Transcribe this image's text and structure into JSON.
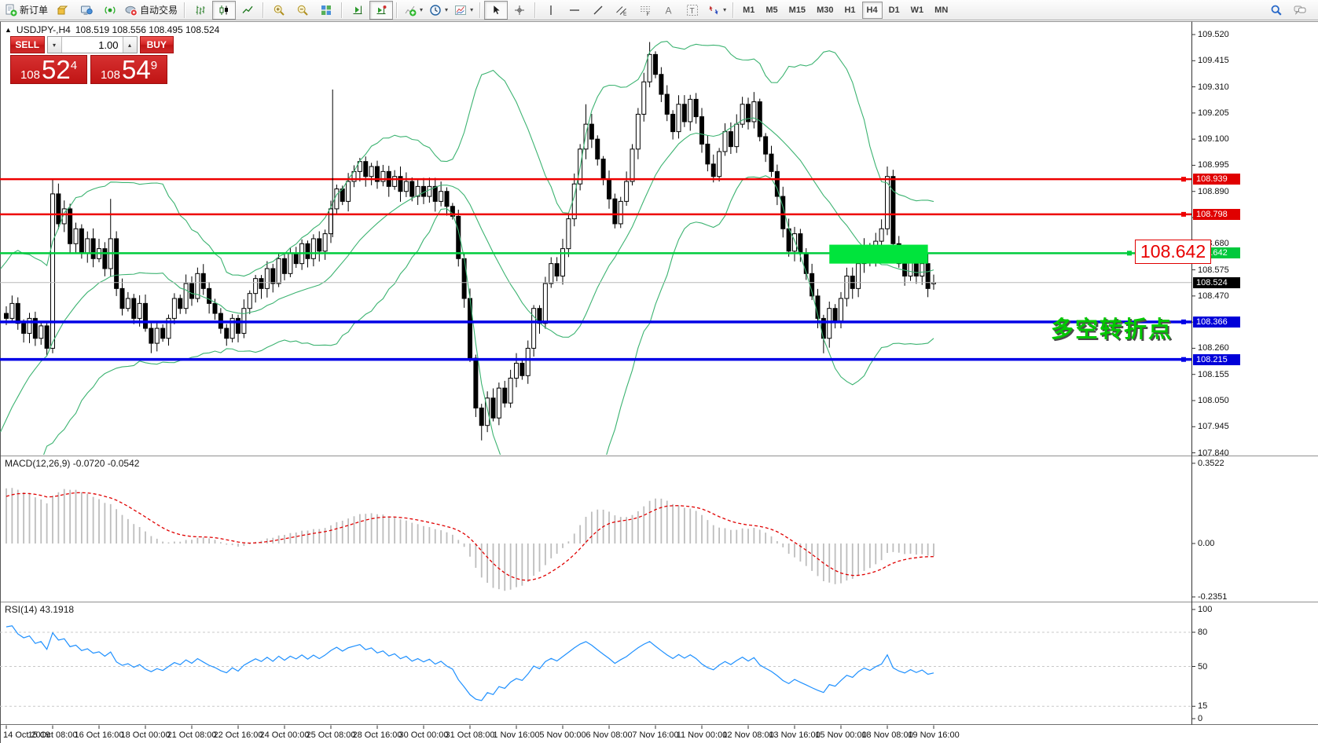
{
  "toolbar": {
    "new_order_label": "新订单",
    "autotrading_label": "自动交易",
    "timeframes": [
      "M1",
      "M5",
      "M15",
      "M30",
      "H1",
      "H4",
      "D1",
      "W1",
      "MN"
    ],
    "active_timeframe": "H4"
  },
  "chart_header": {
    "collapse_glyph": "▲",
    "title": "USDJPY-,H4",
    "ohlc": "108.519 108.556 108.495 108.524"
  },
  "trade_panel": {
    "sell_label": "SELL",
    "buy_label": "BUY",
    "volume": "1.00",
    "sell_price": {
      "prefix": "108",
      "big": "52",
      "sup": "4"
    },
    "buy_price": {
      "prefix": "108",
      "big": "54",
      "sup": "9"
    }
  },
  "price_axis": {
    "ticks": [
      "109.520",
      "109.415",
      "109.310",
      "109.205",
      "109.100",
      "108.995",
      "108.890",
      "108.785",
      "108.680",
      "108.575",
      "108.470",
      "108.365",
      "108.260",
      "108.155",
      "108.050",
      "107.945",
      "107.840"
    ],
    "tags": [
      {
        "text": "108.939",
        "bg": "#e00000"
      },
      {
        "text": "108.798",
        "bg": "#e00000"
      },
      {
        "text": "108.642",
        "bg": "#00c83c"
      },
      {
        "text": "108.524",
        "bg": "#000000"
      },
      {
        "text": "108.366",
        "bg": "#0000d8"
      },
      {
        "text": "108.215",
        "bg": "#0000d8"
      }
    ]
  },
  "annotations": {
    "price_callout": "108.642",
    "note_cn": "多空转折点"
  },
  "macd_panel": {
    "label": "MACD(12,26,9) -0.0720 -0.0542",
    "ticks": [
      {
        "text": "0.3522",
        "value": 0.3522
      },
      {
        "text": "0.00",
        "value": 0
      },
      {
        "text": "-0.2351",
        "value": -0.2351
      }
    ]
  },
  "rsi_panel": {
    "label": "RSI(14) 43.1918",
    "ticks": [
      {
        "text": "100",
        "value": 100
      },
      {
        "text": "80",
        "value": 80
      },
      {
        "text": "50",
        "value": 50
      },
      {
        "text": "15",
        "value": 15
      },
      {
        "text": "0",
        "value": 0
      }
    ],
    "dashed_levels": [
      80,
      50,
      15
    ]
  },
  "time_axis": [
    "14 Oct 2019",
    "15 Oct 08:00",
    "16 Oct 16:00",
    "18 Oct 00:00",
    "21 Oct 08:00",
    "22 Oct 16:00",
    "24 Oct 00:00",
    "25 Oct 08:00",
    "28 Oct 16:00",
    "30 Oct 00:00",
    "31 Oct 08:00",
    "1 Nov 16:00",
    "5 Nov 00:00",
    "6 Nov 08:00",
    "7 Nov 16:00",
    "11 Nov 00:00",
    "12 Nov 08:00",
    "13 Nov 16:00",
    "15 Nov 00:00",
    "18 Nov 08:00",
    "19 Nov 16:00"
  ],
  "chart_data": {
    "type": "candlestick",
    "symbol": "USDJPY-",
    "period": "H4",
    "ohlc_current": {
      "open": 108.519,
      "high": 108.556,
      "low": 108.495,
      "close": 108.524
    },
    "first_open": 107.32,
    "prehistory_closes": [
      107.38,
      107.45,
      107.52,
      107.48,
      107.6,
      107.68,
      107.75,
      107.82,
      107.78,
      107.9,
      107.98,
      108.05,
      108.12,
      108.08,
      108.2,
      108.28,
      108.24,
      108.35,
      108.42,
      108.4
    ],
    "closes": [
      108.38,
      108.44,
      108.36,
      108.32,
      108.38,
      108.3,
      108.35,
      108.26,
      108.88,
      108.76,
      108.82,
      108.68,
      108.74,
      108.64,
      108.7,
      108.62,
      108.66,
      108.58,
      108.7,
      108.5,
      108.42,
      108.46,
      108.38,
      108.44,
      108.34,
      108.28,
      108.34,
      108.3,
      108.38,
      108.46,
      108.42,
      108.52,
      108.46,
      108.56,
      108.5,
      108.44,
      108.4,
      108.34,
      108.3,
      108.38,
      108.32,
      108.42,
      108.48,
      108.54,
      108.5,
      108.58,
      108.52,
      108.62,
      108.56,
      108.64,
      108.6,
      108.68,
      108.62,
      108.7,
      108.65,
      108.72,
      108.82,
      108.9,
      108.85,
      108.93,
      108.97,
      109.01,
      108.95,
      108.99,
      108.93,
      108.97,
      108.91,
      108.95,
      108.89,
      108.93,
      108.87,
      108.91,
      108.87,
      108.91,
      108.85,
      108.89,
      108.83,
      108.79,
      108.62,
      108.46,
      108.22,
      108.02,
      107.95,
      108.06,
      107.98,
      108.1,
      108.04,
      108.14,
      108.2,
      108.15,
      108.26,
      108.42,
      108.36,
      108.52,
      108.6,
      108.55,
      108.66,
      108.78,
      108.92,
      109.06,
      109.16,
      109.1,
      109.02,
      108.94,
      108.86,
      108.76,
      108.85,
      108.93,
      109.06,
      109.2,
      109.33,
      109.44,
      109.36,
      109.28,
      109.2,
      109.13,
      109.24,
      109.17,
      109.26,
      109.19,
      109.08,
      109.0,
      108.95,
      109.05,
      109.13,
      109.07,
      109.16,
      109.24,
      109.17,
      109.25,
      109.11,
      109.04,
      108.97,
      108.87,
      108.74,
      108.65,
      108.72,
      108.64,
      108.56,
      108.47,
      108.38,
      108.3,
      108.42,
      108.37,
      108.46,
      108.55,
      108.5,
      108.6,
      108.67,
      108.62,
      108.69,
      108.74,
      108.95,
      108.68,
      108.6,
      108.55,
      108.62,
      108.55,
      108.6,
      108.5,
      108.524
    ],
    "overrides": {
      "8": {
        "h": 108.94,
        "l": 108.24
      },
      "18": {
        "h": 108.86
      },
      "82": {
        "l": 107.89
      },
      "100": {
        "h": 109.24
      },
      "111": {
        "h": 109.49
      },
      "141": {
        "l": 108.24
      },
      "152": {
        "h": 108.99
      },
      "160": {
        "o": 108.519,
        "h": 108.556,
        "l": 108.495,
        "c": 108.524
      }
    },
    "hlines": [
      {
        "price": 108.939,
        "color": "#ee0000",
        "width": 2.5
      },
      {
        "price": 108.798,
        "color": "#ee0000",
        "width": 2.5
      },
      {
        "price": 108.642,
        "color": "#00cc3c",
        "width": 2.5
      },
      {
        "price": 108.524,
        "color": "#b8b8b8",
        "width": 1
      },
      {
        "price": 108.366,
        "color": "#0000e6",
        "width": 3.5
      },
      {
        "price": 108.215,
        "color": "#0000e6",
        "width": 3.5
      }
    ],
    "vline_bar": 76.3,
    "highlight_rect": {
      "bar_start": 162,
      "bar_end": 179,
      "price_top": 108.676,
      "price_bottom": 108.6,
      "color": "#00e43c"
    },
    "bollinger": {
      "period": 20,
      "deviation": 2,
      "color": "#3cb371"
    },
    "macd": {
      "fast": 12,
      "slow": 26,
      "signal": 9,
      "main_value": -0.072,
      "signal_value": -0.0542,
      "hist_color": "#bdbdbd",
      "signal_color": "#e00000"
    },
    "rsi": {
      "period": 14,
      "value": 43.1918,
      "color": "#1e90ff"
    },
    "candle_bull_fill": "#ffffff",
    "candle_bear_fill": "#000000",
    "candle_stroke": "#000000"
  }
}
